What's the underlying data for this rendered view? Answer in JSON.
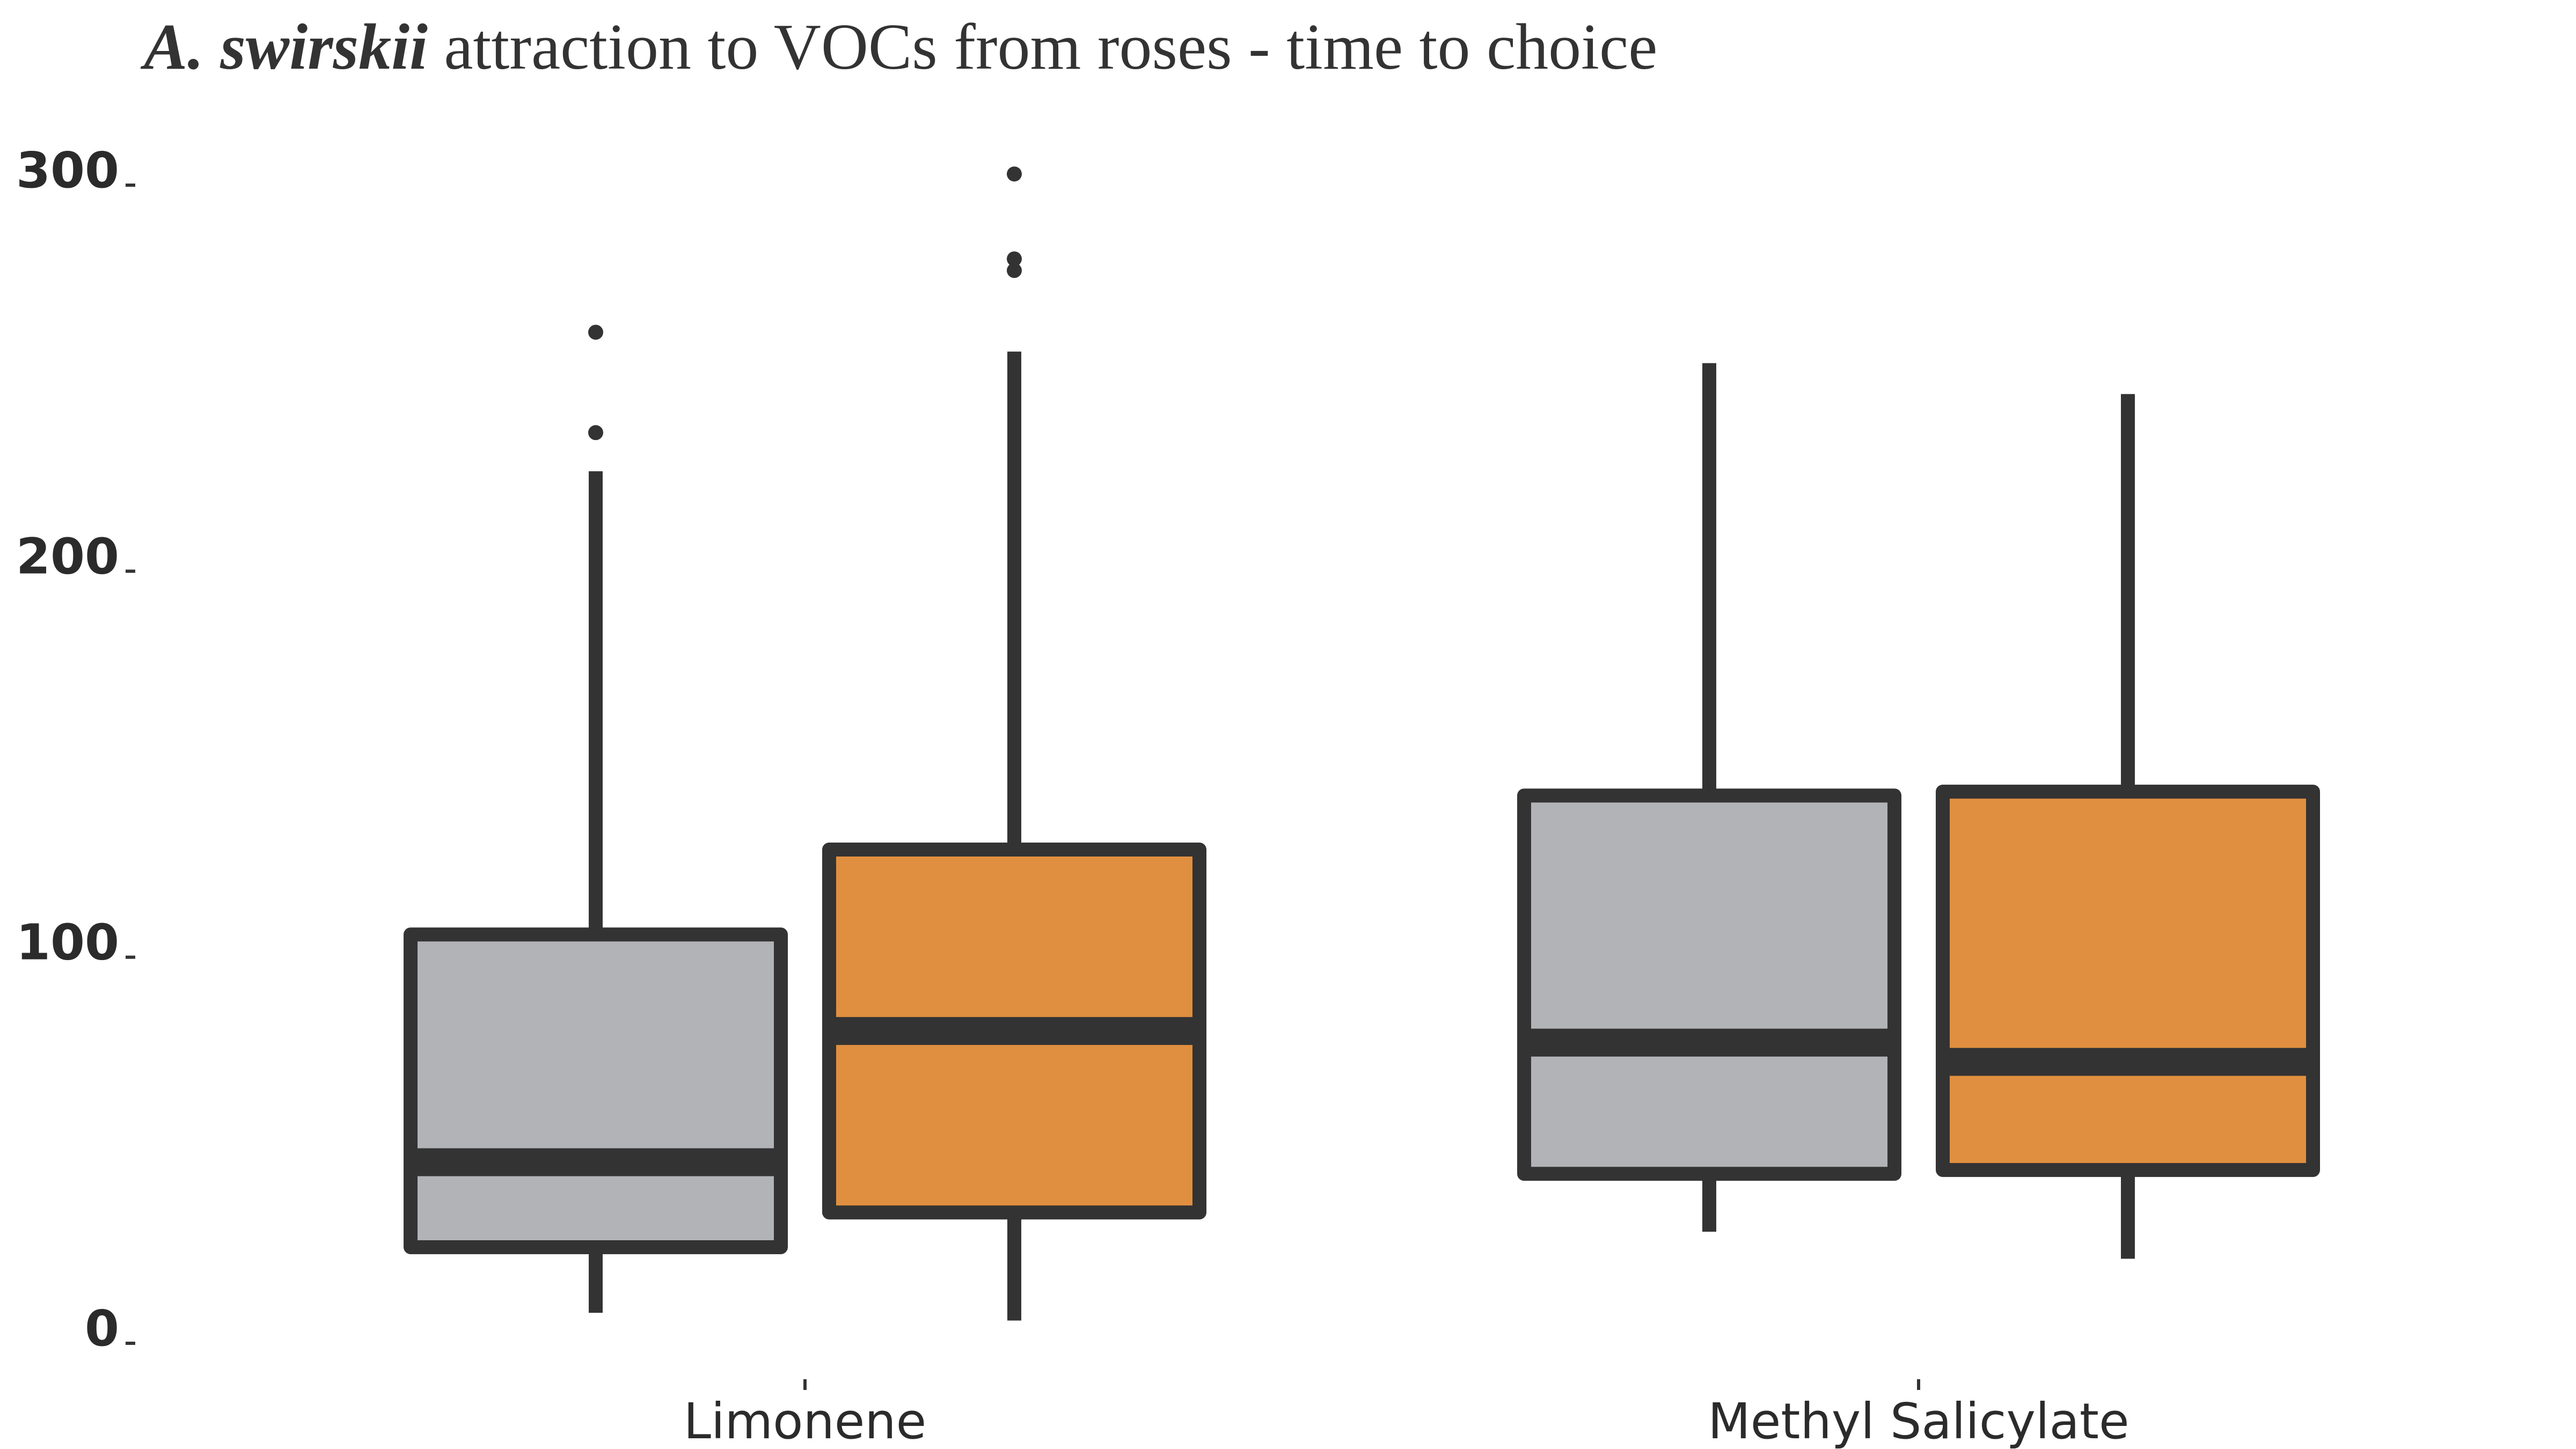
{
  "chart_data": {
    "type": "boxplot",
    "title_italic": "A. swirskii",
    "title_rest": " attraction to VOCs from roses - time to choice",
    "xlabel": "",
    "ylabel": "",
    "ylim": [
      0,
      300
    ],
    "yticks": [
      0,
      100,
      200,
      300
    ],
    "grid": false,
    "legend": "none",
    "categories": [
      "Limonene",
      "Methyl Salicylate"
    ],
    "series": [
      {
        "color": "#b2b3b6",
        "boxes": [
          {
            "category": "Limonene",
            "whisker_low": 4,
            "q1": 21,
            "median": 43,
            "q3": 102,
            "whisker_high": 222,
            "outliers": [
              232,
              258
            ]
          },
          {
            "category": "Methyl Salicylate",
            "whisker_low": 25,
            "q1": 40,
            "median": 74,
            "q3": 138,
            "whisker_high": 250,
            "outliers": []
          }
        ]
      },
      {
        "color": "#e08f40",
        "boxes": [
          {
            "category": "Limonene",
            "whisker_low": 2,
            "q1": 30,
            "median": 77,
            "q3": 124,
            "whisker_high": 253,
            "outliers": [
              274,
              277,
              299
            ]
          },
          {
            "category": "Methyl Salicylate",
            "whisker_low": 18,
            "q1": 41,
            "median": 69,
            "q3": 139,
            "whisker_high": 242,
            "outliers": []
          }
        ]
      }
    ]
  }
}
